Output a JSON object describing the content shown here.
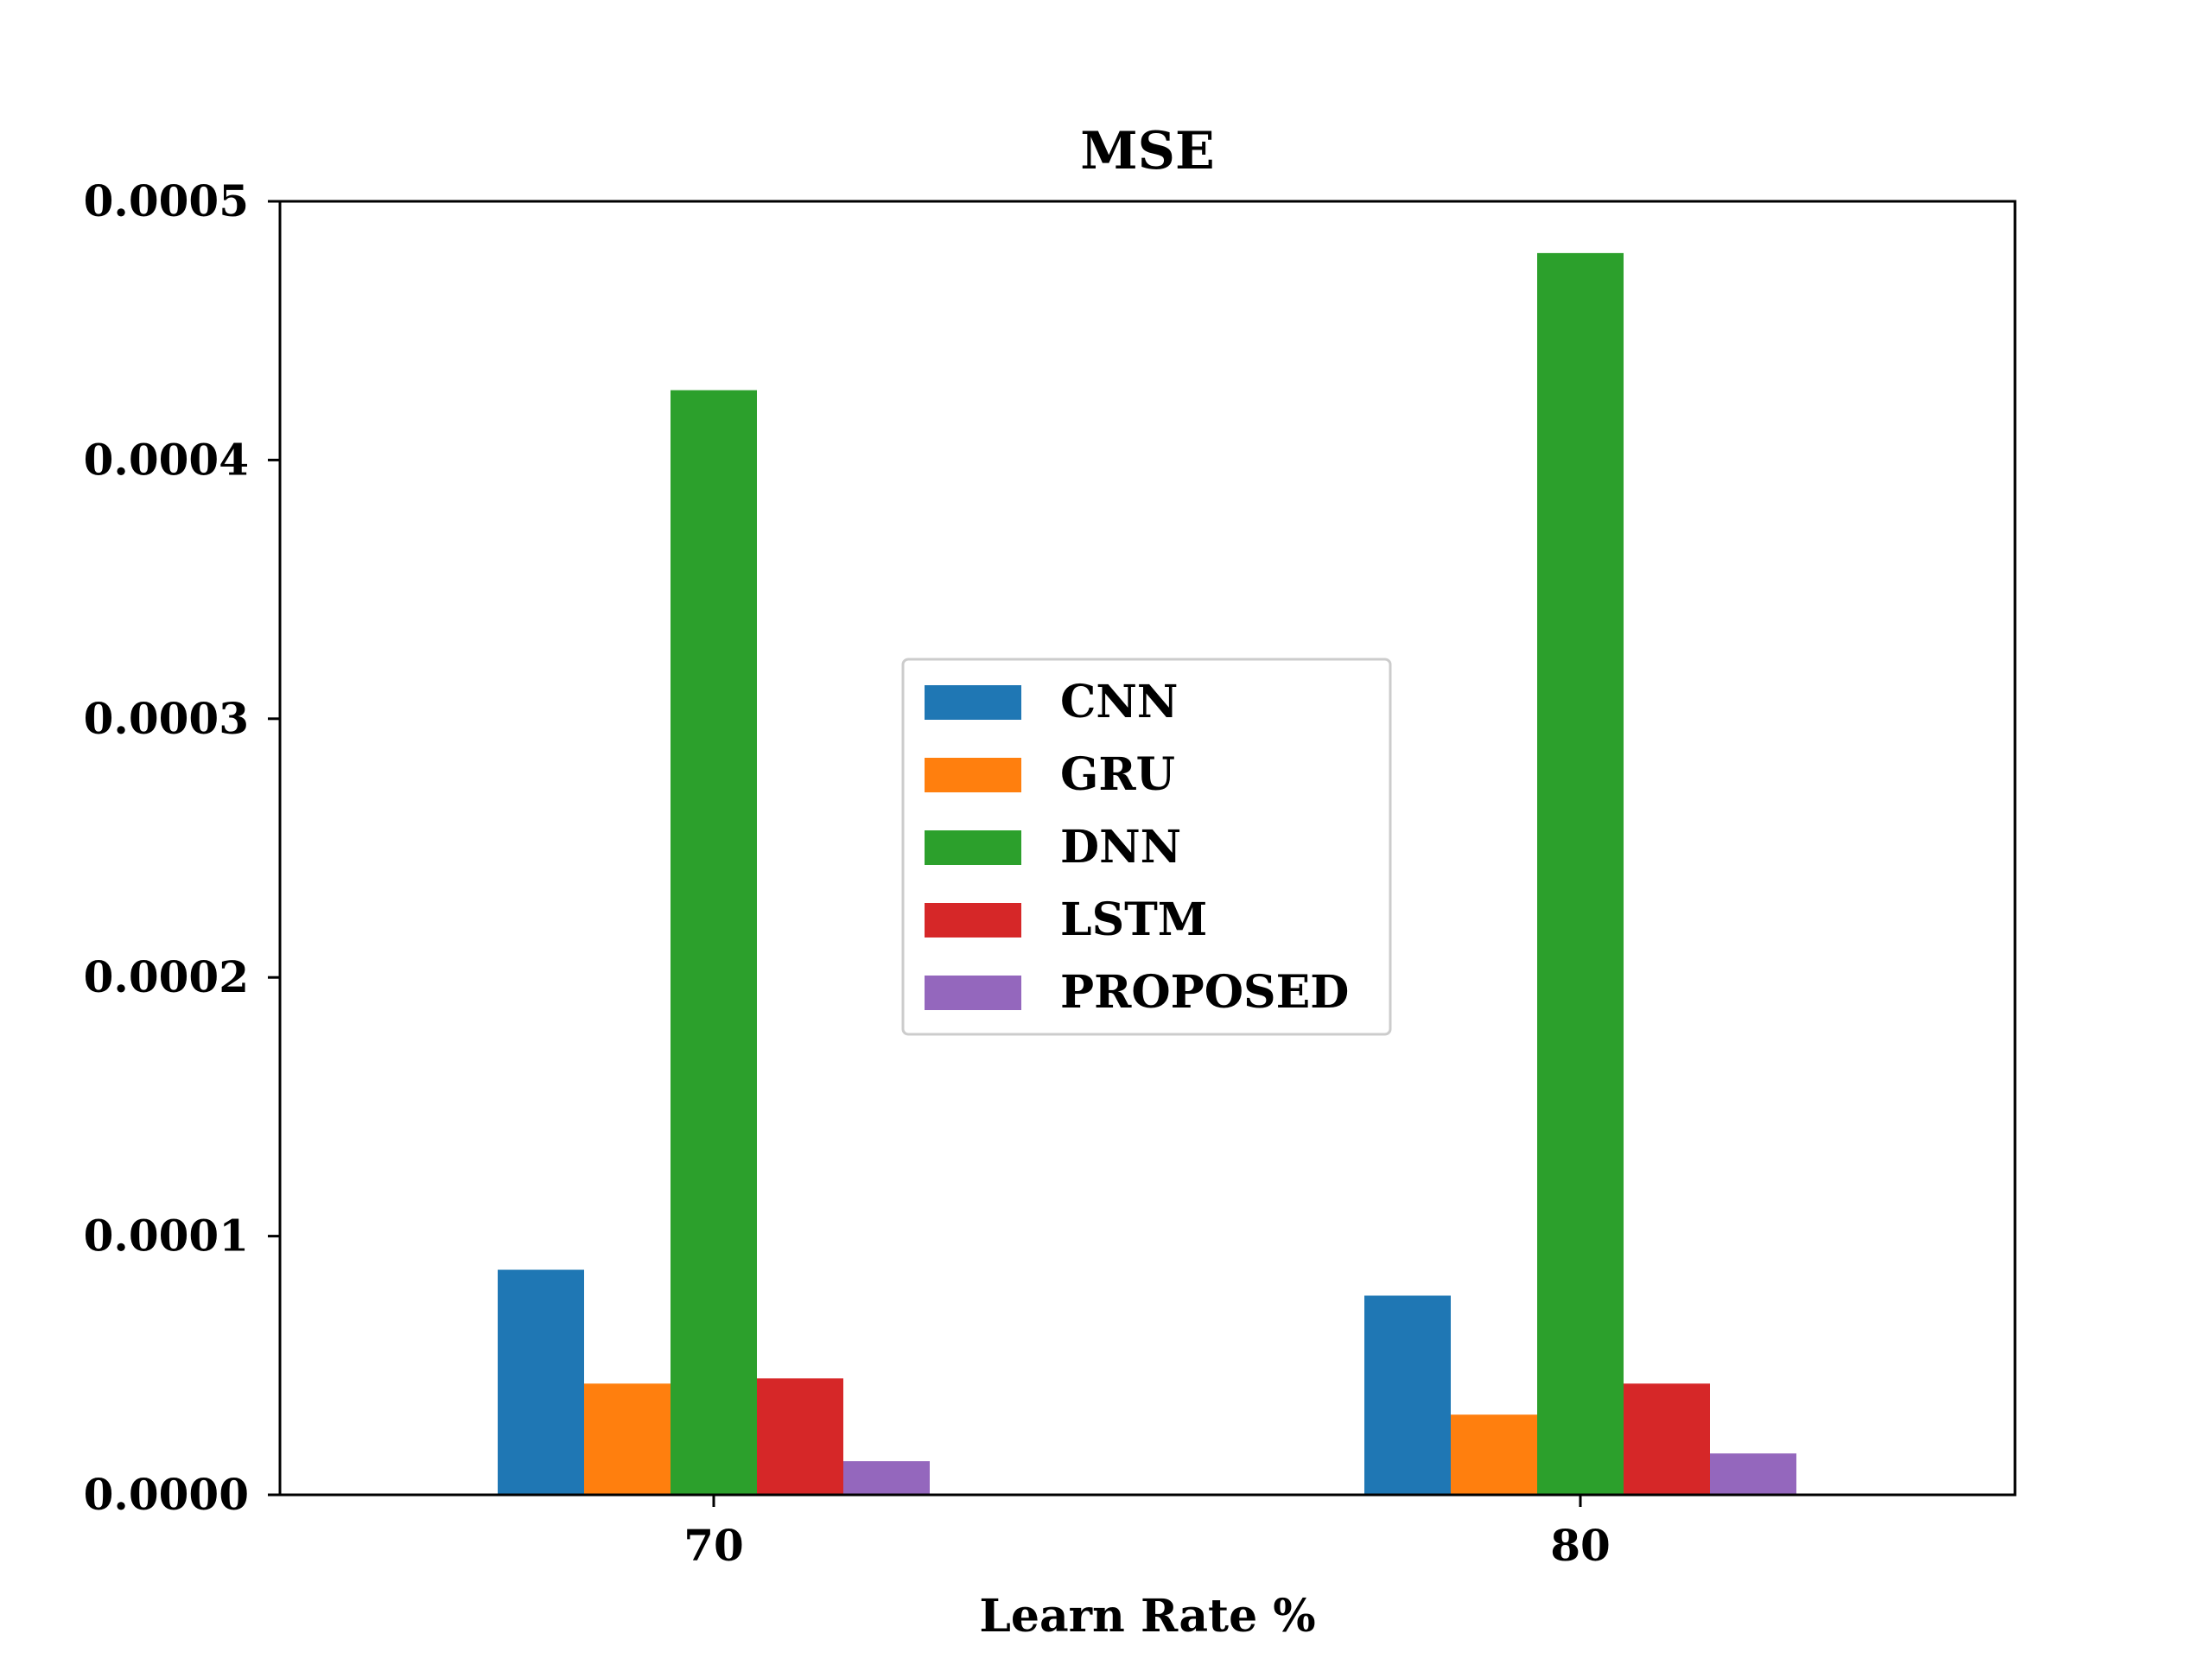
{
  "chart_data": {
    "type": "bar",
    "title": "MSE",
    "xlabel": "Learn Rate %",
    "ylabel": "",
    "categories": [
      "70",
      "80"
    ],
    "ylim": [
      0,
      0.0005
    ],
    "yticks": [
      "0.0000",
      "0.0001",
      "0.0002",
      "0.0003",
      "0.0004",
      "0.0005"
    ],
    "ytick_values": [
      0,
      0.0001,
      0.0002,
      0.0003,
      0.0004,
      0.0005
    ],
    "legend_position": "center",
    "grid": false,
    "series": [
      {
        "name": "CNN",
        "color": "#1f77b4",
        "values": [
          8.7e-05,
          7.7e-05
        ]
      },
      {
        "name": "GRU",
        "color": "#ff7f0e",
        "values": [
          4.3e-05,
          3.1e-05
        ]
      },
      {
        "name": "DNN",
        "color": "#2ca02c",
        "values": [
          0.000427,
          0.00048
        ]
      },
      {
        "name": "LSTM",
        "color": "#d62728",
        "values": [
          4.5e-05,
          4.3e-05
        ]
      },
      {
        "name": "PROPOSED",
        "color": "#9467bd",
        "values": [
          1.3e-05,
          1.6e-05
        ]
      }
    ]
  }
}
